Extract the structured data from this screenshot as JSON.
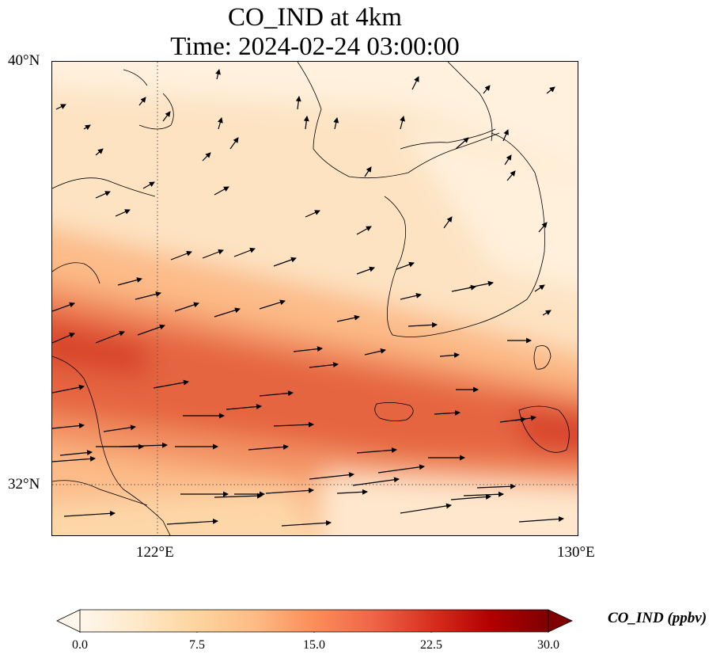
{
  "title": {
    "line1": "CO_IND at 4km",
    "line2": "Time: 2024-02-24 03:00:00"
  },
  "map": {
    "lon_range": [
      120,
      130
    ],
    "lat_range": [
      31,
      40
    ],
    "lat_ticks": [
      "40°N",
      "32°N"
    ],
    "lon_ticks": [
      "122°E",
      "130°E"
    ],
    "gridlines": "dotted at 122°E and 32°N",
    "field": "CO_IND concentration (ppbv), highest along a band from the Shandong/Jiangsu coast across the Yellow Sea toward Kyushu",
    "arrows": "wind vectors at 4 km, predominantly westerly/west-southwesterly"
  },
  "colorbar": {
    "label": "CO_IND (ppbv)",
    "colormap": "OrRd",
    "ticks": [
      "0.0",
      "7.5",
      "15.0",
      "22.5",
      "30.0"
    ],
    "range": [
      0,
      30
    ],
    "extend": "both",
    "colors": [
      "#fff7ec",
      "#fee8c8",
      "#fdd49e",
      "#fdbb84",
      "#fc8d59",
      "#ef6548",
      "#d7301f",
      "#b30000",
      "#7f0000"
    ]
  }
}
